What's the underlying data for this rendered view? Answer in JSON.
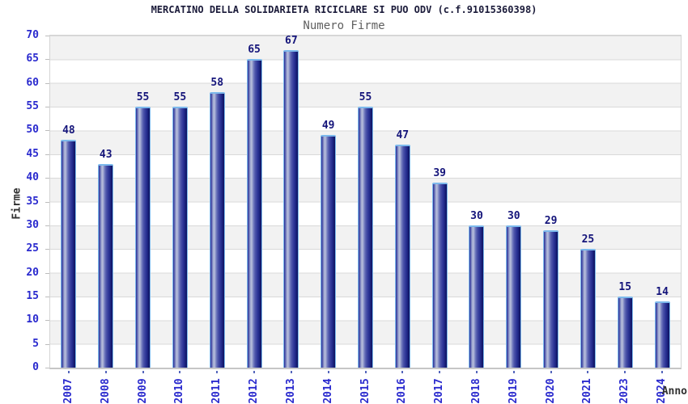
{
  "chart_data": {
    "type": "bar",
    "title": "MERCATINO DELLA SOLIDARIETA RICICLARE SI PUO ODV (c.f.91015360398)",
    "subtitle": "Numero Firme",
    "xlabel": "Anno",
    "ylabel": "Firme",
    "categories": [
      "2007",
      "2008",
      "2009",
      "2010",
      "2011",
      "2012",
      "2013",
      "2014",
      "2015",
      "2016",
      "2017",
      "2018",
      "2019",
      "2020",
      "2021",
      "2023",
      "2024"
    ],
    "values": [
      48,
      43,
      55,
      55,
      58,
      65,
      67,
      49,
      55,
      47,
      39,
      30,
      30,
      29,
      25,
      15,
      14
    ],
    "ylim": [
      0,
      70
    ],
    "ytick_step": 5,
    "grid": "horizontal-bands",
    "legend": "none",
    "bar_value_labels": true
  },
  "colors": {
    "title": "#1b1b3a",
    "subtitle": "#5f5f5f",
    "tick_label": "#2a2ace",
    "value_label": "#14147a",
    "axis_title": "#303030",
    "band": "#f2f2f2",
    "gridline": "#d9d9d9",
    "bar_highlight": "#b9bfdd",
    "bar_dark": "#0f1460",
    "bar_cap": "#7db9ec"
  }
}
